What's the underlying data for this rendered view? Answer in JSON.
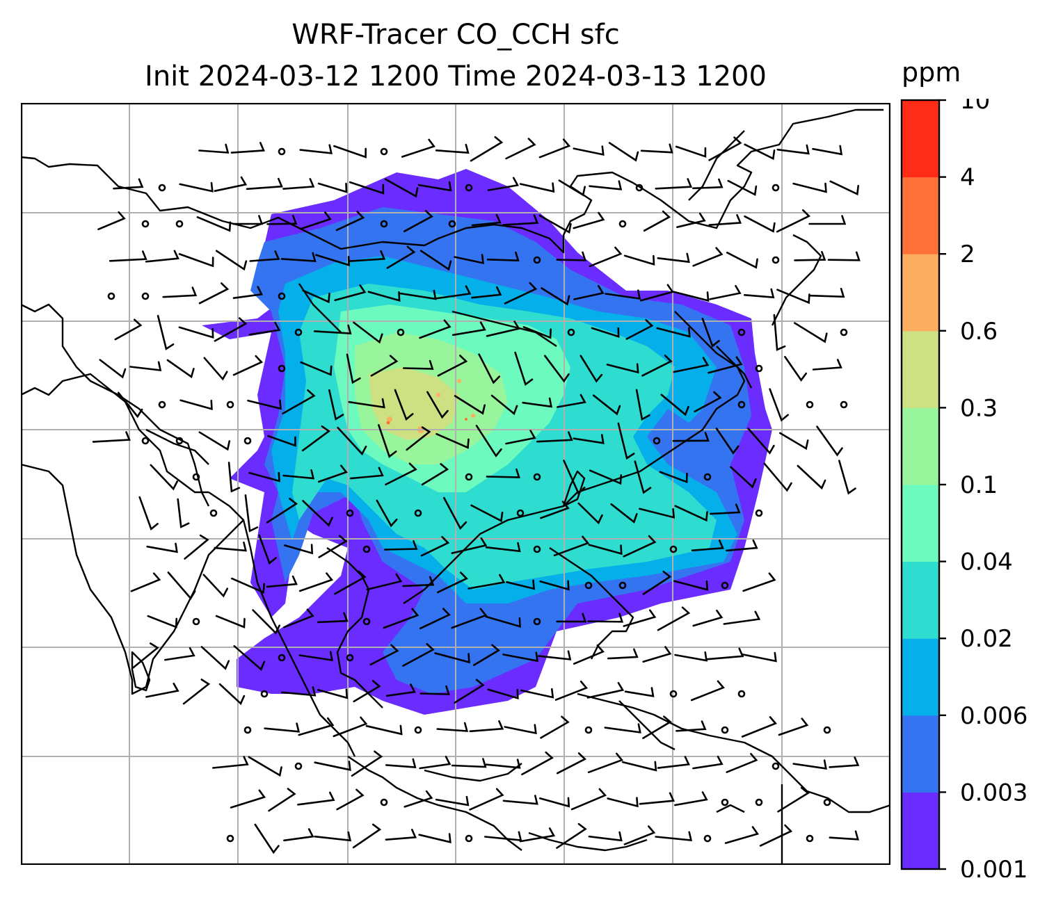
{
  "title": {
    "line1": "WRF-Tracer CO_CCH sfc",
    "line2": "Init 2024-03-12 1200 Time 2024-03-13 1200"
  },
  "colorbar": {
    "unit": "ppm",
    "levels": [
      "0.001",
      "0.003",
      "0.006",
      "0.02",
      "0.04",
      "0.1",
      "0.3",
      "0.6",
      "2",
      "4",
      "10"
    ],
    "colors": [
      "#6a2cff",
      "#3474f0",
      "#05b0ea",
      "#2fdcd0",
      "#6cfabf",
      "#98f59b",
      "#cde183",
      "#fcae60",
      "#fe7139",
      "#ff2c17"
    ]
  },
  "map": {
    "gridline_color": "#b0b0b0",
    "coastline_color": "#000000",
    "wind_barb_color": "#000000",
    "variable": "CO_CCH surface tracer concentration with wind barbs"
  }
}
